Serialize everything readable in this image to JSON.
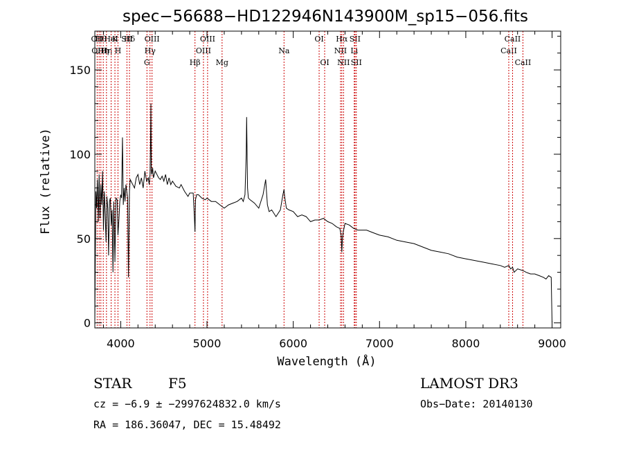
{
  "chart_data": {
    "type": "line",
    "title": "spec−56688−HD122946N143900M_sp15−056.fits",
    "xlabel": "Wavelength (Å)",
    "ylabel": "Flux (relative)",
    "xlim": [
      3700,
      9100
    ],
    "ylim": [
      -3,
      173
    ],
    "xticks": [
      4000,
      5000,
      6000,
      7000,
      8000,
      9000
    ],
    "yticks": [
      0,
      50,
      100,
      150
    ],
    "series": [
      {
        "name": "spectrum",
        "x": [
          3700,
          3705,
          3712,
          3720,
          3730,
          3740,
          3750,
          3760,
          3770,
          3780,
          3790,
          3800,
          3810,
          3820,
          3830,
          3840,
          3850,
          3860,
          3870,
          3880,
          3890,
          3900,
          3910,
          3920,
          3933,
          3945,
          3960,
          3968,
          3980,
          3990,
          4000,
          4010,
          4020,
          4030,
          4040,
          4050,
          4060,
          4070,
          4080,
          4090,
          4101,
          4110,
          4120,
          4140,
          4160,
          4180,
          4200,
          4220,
          4240,
          4260,
          4280,
          4300,
          4320,
          4330,
          4340,
          4345,
          4350,
          4355,
          4360,
          4370,
          4380,
          4400,
          4420,
          4440,
          4460,
          4480,
          4500,
          4520,
          4540,
          4560,
          4580,
          4600,
          4640,
          4680,
          4700,
          4740,
          4780,
          4800,
          4840,
          4855,
          4861,
          4867,
          4880,
          4900,
          4940,
          4980,
          5000,
          5050,
          5100,
          5150,
          5200,
          5250,
          5300,
          5350,
          5400,
          5420,
          5440,
          5455,
          5460,
          5470,
          5480,
          5500,
          5550,
          5600,
          5650,
          5680,
          5700,
          5720,
          5750,
          5800,
          5850,
          5880,
          5893,
          5900,
          5920,
          5950,
          6000,
          6050,
          6100,
          6150,
          6200,
          6250,
          6300,
          6350,
          6400,
          6450,
          6500,
          6540,
          6555,
          6563,
          6570,
          6580,
          6600,
          6650,
          6700,
          6750,
          6800,
          6850,
          6900,
          6950,
          7000,
          7100,
          7200,
          7300,
          7400,
          7500,
          7600,
          7700,
          7800,
          7900,
          8000,
          8100,
          8200,
          8300,
          8400,
          8450,
          8498,
          8520,
          8542,
          8560,
          8600,
          8662,
          8700,
          8750,
          8800,
          8850,
          8900,
          8930,
          8960,
          8990,
          9000
        ],
        "values": [
          0,
          35,
          78,
          68,
          85,
          60,
          88,
          62,
          82,
          70,
          90,
          55,
          78,
          65,
          48,
          75,
          68,
          40,
          72,
          74,
          58,
          67,
          30,
          72,
          36,
          74,
          73,
          52,
          62,
          72,
          76,
          74,
          110,
          70,
          80,
          72,
          82,
          78,
          74,
          27,
          78,
          85,
          84,
          82,
          80,
          86,
          88,
          82,
          86,
          80,
          90,
          84,
          86,
          82,
          88,
          105,
          130,
          90,
          88,
          92,
          86,
          90,
          88,
          86,
          85,
          87,
          84,
          88,
          82,
          86,
          82,
          84,
          81,
          80,
          82,
          78,
          75,
          77,
          77,
          62,
          54,
          73,
          76,
          76,
          74,
          73,
          74,
          72,
          72,
          70,
          68,
          70,
          71,
          72,
          74,
          72,
          76,
          100,
          122,
          80,
          74,
          73,
          71,
          68,
          76,
          85,
          70,
          66,
          67,
          63,
          67,
          76,
          79,
          75,
          68,
          67,
          66,
          63,
          64,
          63,
          60,
          61,
          61,
          62,
          60,
          59,
          57,
          56,
          52,
          42,
          50,
          54,
          59,
          58,
          56,
          55,
          55,
          55,
          54,
          53,
          52,
          51,
          49,
          48,
          47,
          45,
          43,
          42,
          41,
          39,
          38,
          37,
          36,
          35,
          34,
          33,
          34,
          32,
          33,
          30,
          32,
          31,
          30,
          29,
          29,
          28,
          27,
          26,
          28,
          27,
          0
        ]
      }
    ],
    "lines": [
      {
        "wave": 3727,
        "labels": [
          "OII"
        ]
      },
      {
        "wave": 3750,
        "labels": [
          "",
          "OIII"
        ]
      },
      {
        "wave": 3770,
        "labels": [
          "Hθ"
        ]
      },
      {
        "wave": 3798,
        "labels": [
          "",
          "Hη"
        ]
      },
      {
        "wave": 3835,
        "labels": [
          "",
          "Hη"
        ]
      },
      {
        "wave": 3889,
        "labels": [
          "HeI"
        ]
      },
      {
        "wave": 3933,
        "labels": [
          "K"
        ]
      },
      {
        "wave": 3968,
        "labels": [
          "",
          "H"
        ]
      },
      {
        "wave": 4072,
        "labels": [
          "SII"
        ]
      },
      {
        "wave": 4101,
        "labels": [
          "Hδ"
        ]
      },
      {
        "wave": 4304,
        "labels": [
          "",
          "",
          "G"
        ]
      },
      {
        "wave": 4340,
        "labels": [
          "",
          "Hγ"
        ]
      },
      {
        "wave": 4363,
        "labels": [
          "OIII"
        ]
      },
      {
        "wave": 4861,
        "labels": [
          "",
          "",
          "Hβ"
        ]
      },
      {
        "wave": 4959,
        "labels": [
          "",
          "OIII"
        ]
      },
      {
        "wave": 5007,
        "labels": [
          "OIII"
        ]
      },
      {
        "wave": 5175,
        "labels": [
          "",
          "",
          "Mg"
        ]
      },
      {
        "wave": 5893,
        "labels": [
          "",
          "Na"
        ]
      },
      {
        "wave": 6300,
        "labels": [
          "OI"
        ]
      },
      {
        "wave": 6364,
        "labels": [
          "",
          "",
          "OI"
        ]
      },
      {
        "wave": 6548,
        "labels": [
          "",
          "NII"
        ]
      },
      {
        "wave": 6563,
        "labels": [
          "Hα"
        ]
      },
      {
        "wave": 6583,
        "labels": [
          "",
          "",
          "NII"
        ]
      },
      {
        "wave": 6707,
        "labels": [
          "",
          "Li"
        ]
      },
      {
        "wave": 6716,
        "labels": [
          "SII"
        ]
      },
      {
        "wave": 6731,
        "labels": [
          "",
          "",
          "SII"
        ]
      },
      {
        "wave": 8498,
        "labels": [
          "",
          "CaII"
        ]
      },
      {
        "wave": 8542,
        "labels": [
          "CaII"
        ]
      },
      {
        "wave": 8662,
        "labels": [
          "",
          "",
          "CaII"
        ]
      }
    ]
  },
  "info": {
    "object_type": "STAR",
    "subclass": "F5",
    "survey": "LAMOST DR3",
    "cz": "cz = −6.9 ± −2997624832.0 km/s",
    "obs_date": "Obs−Date: 20140130",
    "radec": "RA = 186.36047, DEC =  15.48492"
  },
  "colors": {
    "spectrum": "#000000",
    "line_markers": "#cc0000",
    "axes": "#000000"
  }
}
